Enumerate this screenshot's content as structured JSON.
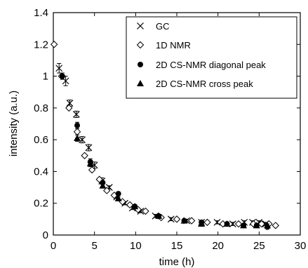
{
  "chart_data": {
    "type": "scatter",
    "title": "",
    "xlabel": "time (h)",
    "ylabel": "intensity (a.u.)",
    "xlim": [
      0,
      30
    ],
    "ylim": [
      0,
      1.4
    ],
    "xticks": [
      "0",
      "5",
      "10",
      "15",
      "20",
      "25",
      "30"
    ],
    "yticks": [
      "0",
      "0.2",
      "0.4",
      "0.6",
      "0.8",
      "1",
      "1.2",
      "1.4"
    ],
    "grid": false,
    "legend_position": "top-right",
    "series": [
      {
        "name": "GC",
        "marker": "x",
        "x": [
          0.7,
          1.5,
          2.0,
          2.8,
          3.5,
          4.3,
          5.0,
          5.9,
          6.8,
          7.7,
          8.7,
          9.6,
          10.6,
          12.4,
          14.3,
          16.2,
          18.0,
          19.9,
          21.8,
          23.2,
          24.2,
          25.0,
          25.8
        ],
        "y": [
          1.05,
          0.97,
          0.83,
          0.76,
          0.6,
          0.55,
          0.44,
          0.34,
          0.3,
          0.24,
          0.2,
          0.17,
          0.15,
          0.12,
          0.1,
          0.09,
          0.08,
          0.08,
          0.07,
          0.08,
          0.08,
          0.08,
          0.07
        ],
        "error": [
          0.03,
          0.03,
          0.02,
          0.02,
          0.02,
          0.02,
          0.02,
          0.02,
          0.01,
          0.01,
          0.01,
          0.01,
          0.01,
          0.01,
          0.01,
          0.01,
          0.01,
          0.01,
          0.01,
          0.01,
          0.01,
          0.01,
          0.01
        ]
      },
      {
        "name": "1D NMR",
        "marker": "diamond-open",
        "x": [
          0.1,
          1.0,
          1.9,
          2.9,
          3.8,
          4.7,
          5.6,
          6.5,
          7.4,
          8.4,
          9.3,
          10.3,
          11.2,
          13.1,
          15.0,
          16.8,
          18.7,
          20.6,
          22.5,
          24.3,
          25.3,
          26.2,
          27.0
        ],
        "y": [
          1.2,
          1.0,
          0.8,
          0.65,
          0.5,
          0.41,
          0.35,
          0.28,
          0.25,
          0.21,
          0.19,
          0.16,
          0.15,
          0.11,
          0.1,
          0.09,
          0.08,
          0.07,
          0.07,
          0.07,
          0.07,
          0.07,
          0.06
        ]
      },
      {
        "name": "2D CS-NMR diagonal peak",
        "marker": "circle-filled",
        "x": [
          1.1,
          2.9,
          4.5,
          6.0,
          7.9,
          9.9,
          12.8,
          15.9,
          18.0,
          21.1,
          23.1,
          24.7,
          26.0
        ],
        "y": [
          1.0,
          0.69,
          0.46,
          0.33,
          0.26,
          0.18,
          0.12,
          0.09,
          0.08,
          0.07,
          0.06,
          0.06,
          0.05
        ],
        "error": [
          0.02,
          0.02,
          0.02,
          0.01,
          0.01,
          0.01,
          0.01,
          0.01,
          0.01,
          0.01,
          0.01,
          0.01,
          0.01
        ]
      },
      {
        "name": "2D CS-NMR cross peak",
        "marker": "triangle-filled",
        "x": [
          2.9,
          4.5,
          6.0,
          7.9,
          9.9,
          12.8,
          15.9,
          18.0,
          21.1,
          23.1,
          24.7,
          26.0
        ],
        "y": [
          0.61,
          0.45,
          0.31,
          0.23,
          0.18,
          0.12,
          0.09,
          0.07,
          0.07,
          0.06,
          0.06,
          0.06
        ],
        "error": [
          0.02,
          0.02,
          0.01,
          0.01,
          0.01,
          0.01,
          0.01,
          0.01,
          0.01,
          0.01,
          0.01,
          0.01
        ]
      }
    ]
  }
}
